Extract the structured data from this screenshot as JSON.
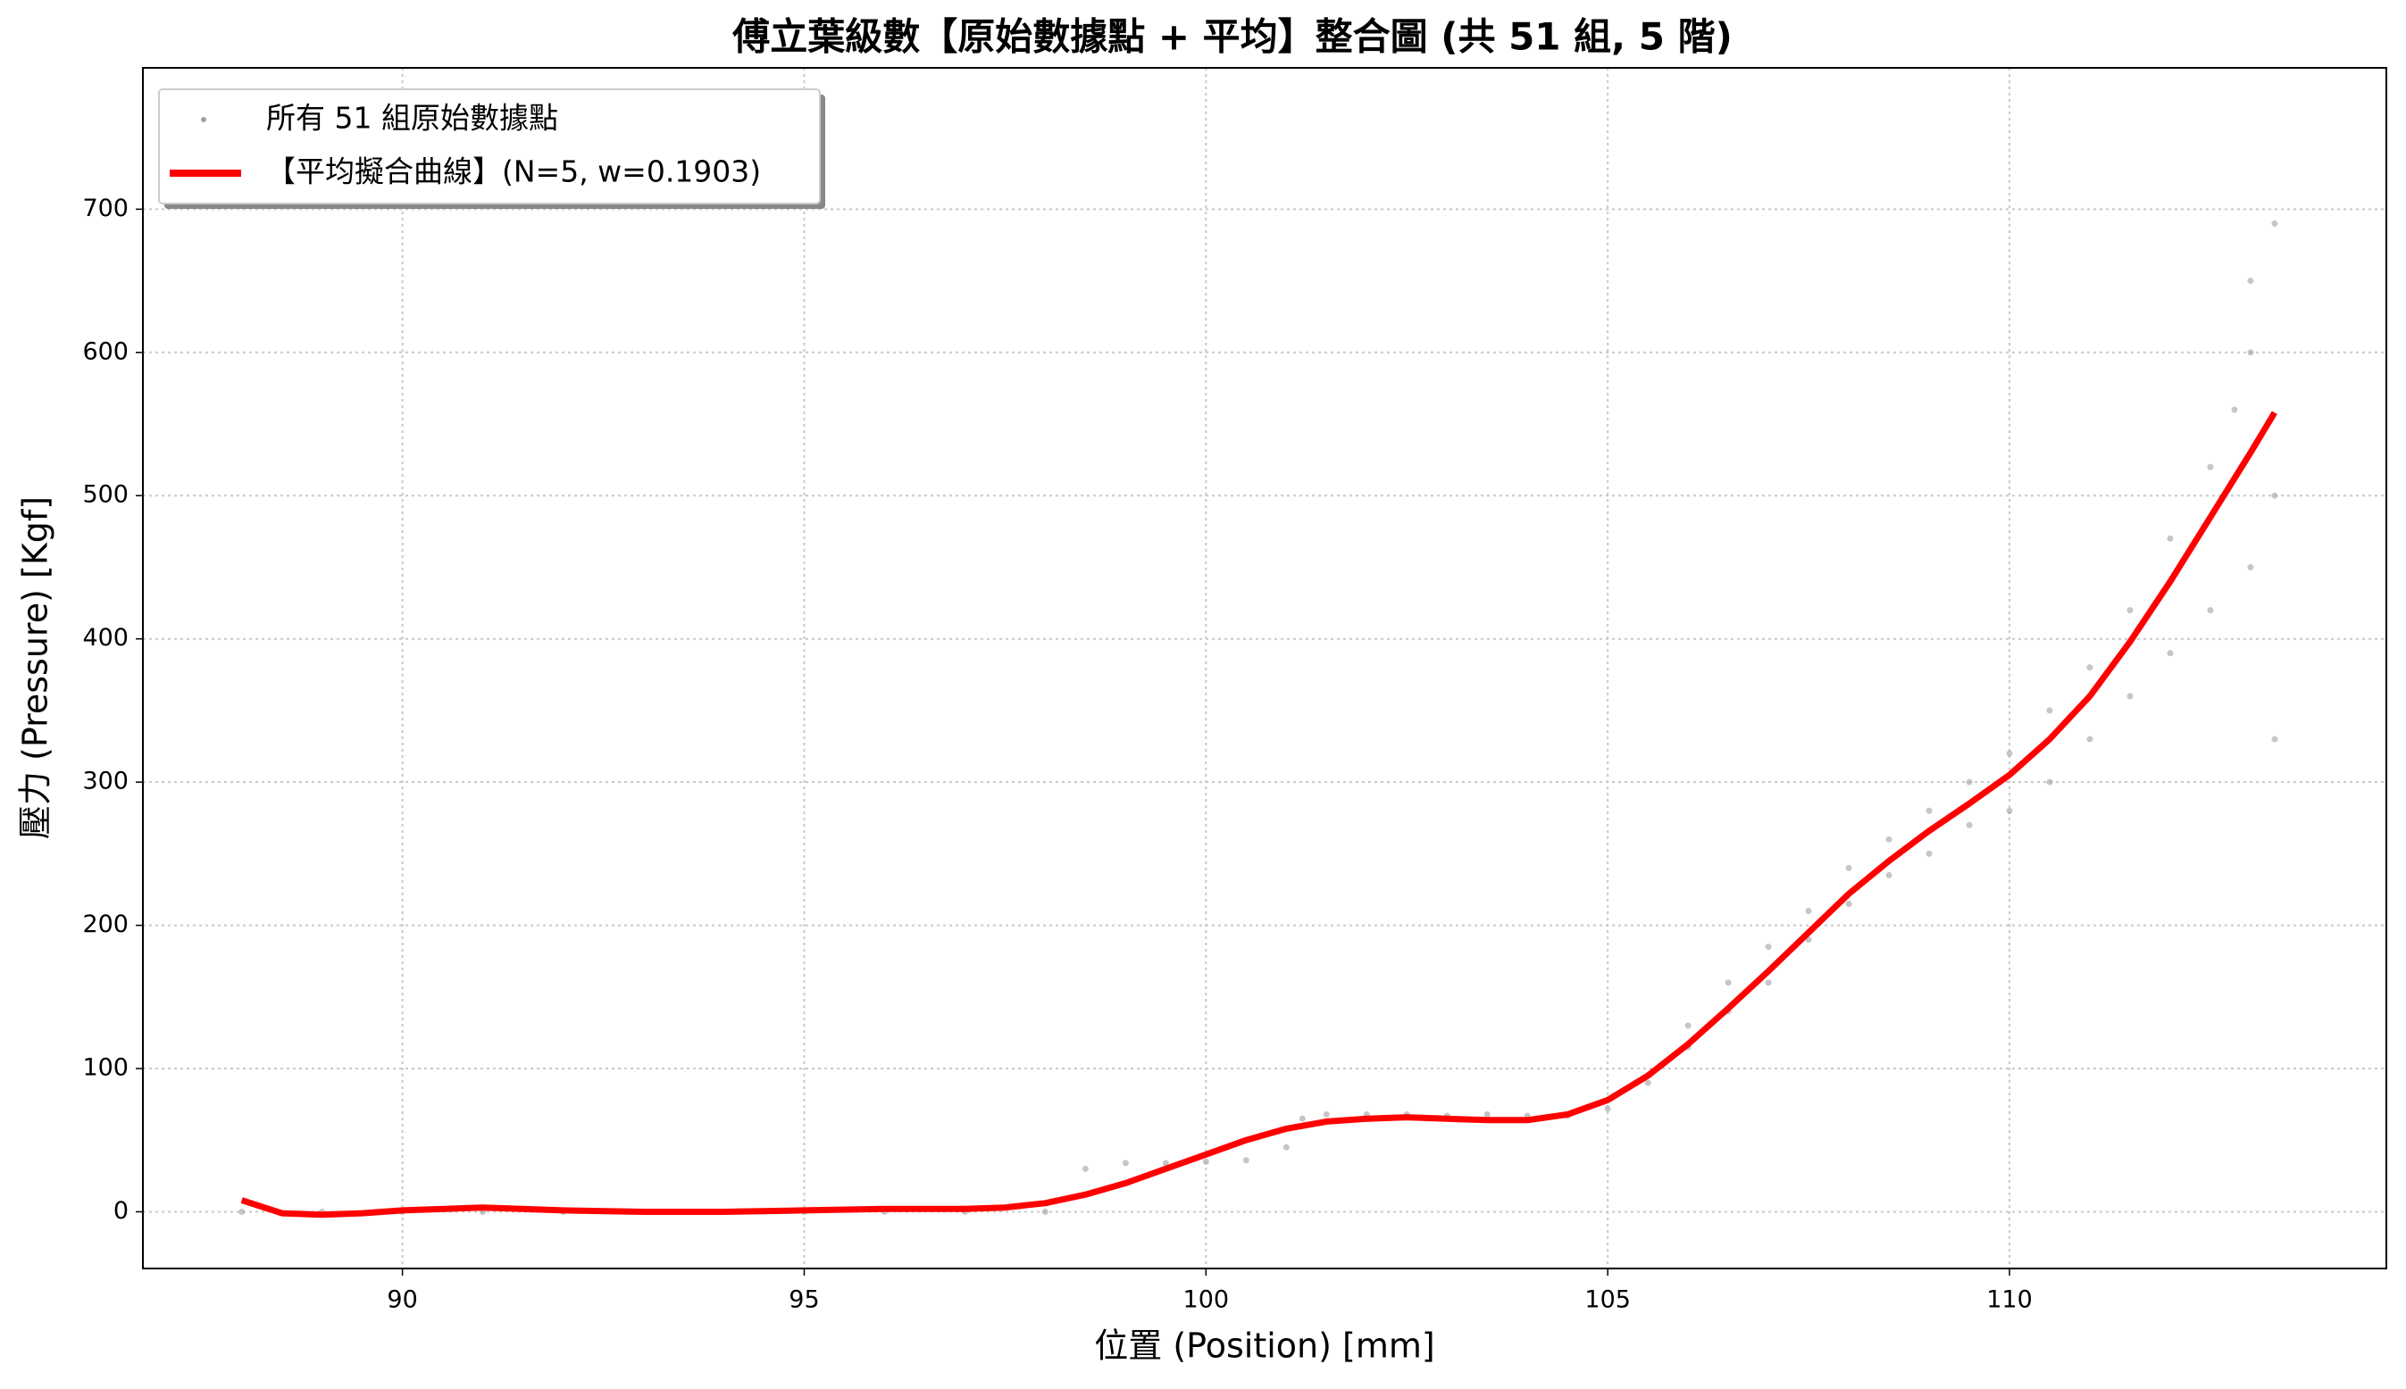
{
  "chart_data": {
    "type": "scatter",
    "title": "傅立葉級數【原始數據點 + 平均】整合圖 (共 51 組, 5 階)",
    "x_label": "位置 (Position) [mm]",
    "y_label": "壓力 (Pressure) [Kgf]",
    "xlim": [
      86.77,
      114.69
    ],
    "ylim": [
      -39.6,
      798.7
    ],
    "xticks": [
      90,
      95,
      100,
      105,
      110
    ],
    "yticks": [
      0,
      100,
      200,
      300,
      400,
      500,
      600,
      700
    ],
    "grid": true,
    "legend": "upper left",
    "series": [
      {
        "name": "所有 51 組原始數據點",
        "type": "scatter",
        "color": "#a0a0a0",
        "x": [
          88,
          89,
          90,
          91,
          92,
          93,
          94,
          95,
          96,
          97,
          98,
          98.5,
          99,
          99.5,
          100,
          100.5,
          101,
          101.2,
          101.5,
          102,
          102.5,
          103,
          103.5,
          104,
          104.5,
          105,
          105.5,
          106,
          106,
          106.5,
          106.5,
          107,
          107,
          107.5,
          107.5,
          108,
          108,
          108.5,
          108.5,
          109,
          109,
          109.5,
          109.5,
          110,
          110,
          110.5,
          110.5,
          111,
          111,
          111.5,
          111.5,
          112,
          112,
          112.5,
          112.5,
          112.8,
          113,
          113,
          113,
          113.3,
          113.3,
          113.3
        ],
        "values": [
          0,
          0,
          0,
          0,
          0,
          0,
          0,
          0,
          0,
          0,
          0,
          30,
          34,
          34,
          35,
          36,
          45,
          65,
          68,
          68,
          68,
          67,
          68,
          67,
          67,
          72,
          90,
          115,
          130,
          140,
          160,
          160,
          185,
          190,
          210,
          215,
          240,
          235,
          260,
          250,
          280,
          270,
          300,
          280,
          320,
          300,
          350,
          330,
          380,
          360,
          420,
          390,
          470,
          420,
          520,
          560,
          450,
          600,
          650,
          330,
          500,
          690
        ]
      },
      {
        "name": "【平均擬合曲線】(N=5, w=0.1903)",
        "type": "line",
        "color": "#ff0000",
        "x": [
          88,
          88.5,
          89,
          89.5,
          90,
          91,
          92,
          93,
          94,
          95,
          96,
          97,
          97.5,
          98,
          98.5,
          99,
          99.5,
          100,
          100.5,
          101,
          101.5,
          102,
          102.5,
          103,
          103.5,
          104,
          104.5,
          105,
          105.5,
          106,
          106.5,
          107,
          107.5,
          108,
          108.5,
          109,
          109.5,
          110,
          110.5,
          111,
          111.5,
          112,
          112.5,
          113,
          113.3
        ],
        "values": [
          8,
          -1,
          -2,
          -1,
          1,
          3,
          1,
          0,
          0,
          1,
          2,
          2,
          3,
          6,
          12,
          20,
          30,
          40,
          50,
          58,
          63,
          65,
          66,
          65,
          64,
          64,
          68,
          78,
          95,
          117,
          142,
          168,
          195,
          222,
          245,
          266,
          285,
          305,
          330,
          360,
          398,
          440,
          485,
          530,
          558
        ]
      }
    ]
  }
}
